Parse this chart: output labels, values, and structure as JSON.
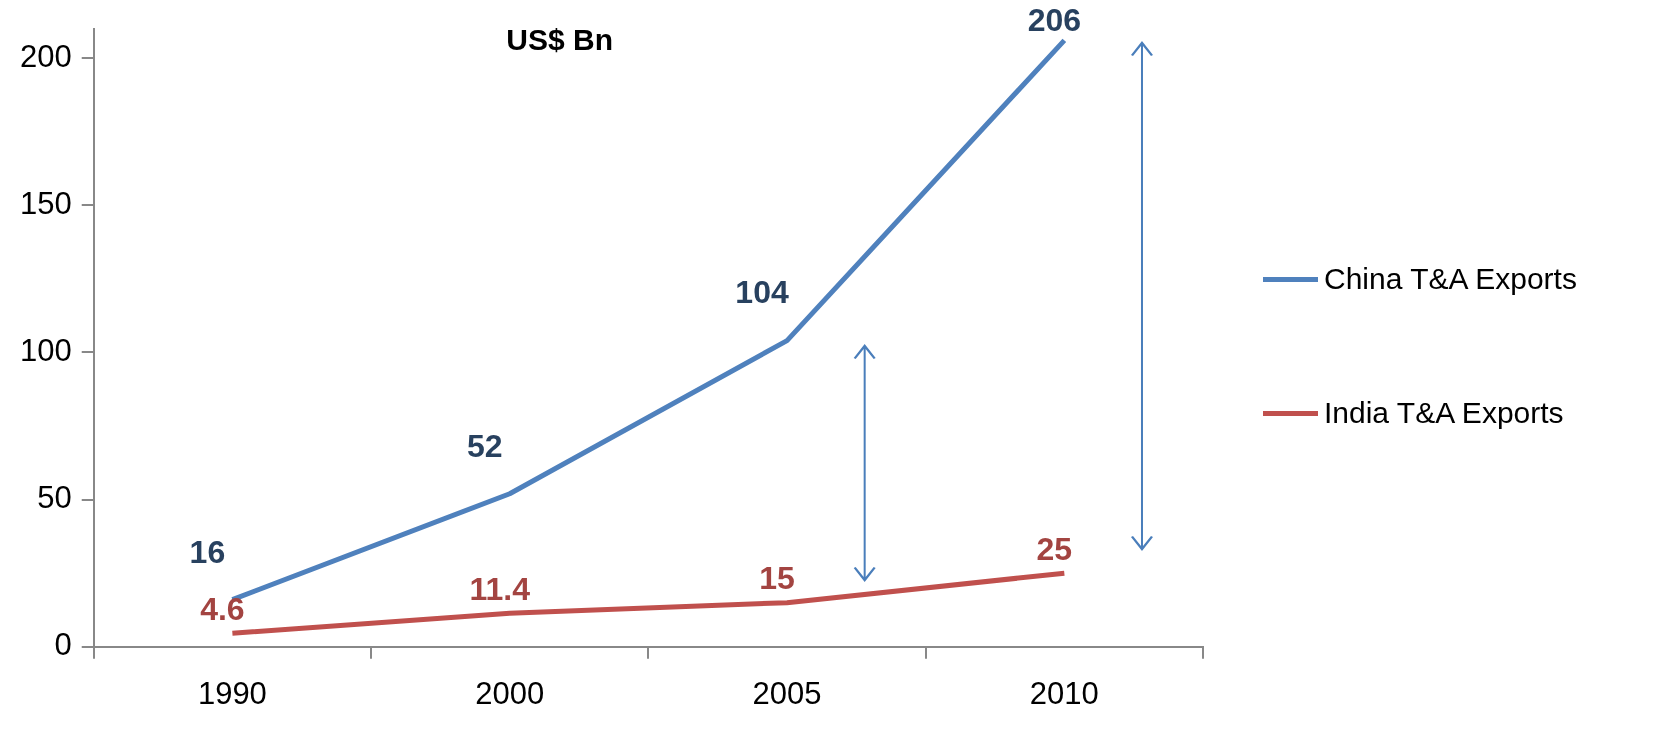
{
  "chart_data": {
    "type": "line",
    "title": "US$ Bn",
    "categories": [
      "1990",
      "2000",
      "2005",
      "2010"
    ],
    "series": [
      {
        "name": "China T&A Exports",
        "color": "#4f81bd",
        "values": [
          16,
          52,
          104,
          206
        ]
      },
      {
        "name": "India T&A Exports",
        "color": "#c0504d",
        "values": [
          4.6,
          11.4,
          15,
          25
        ]
      }
    ],
    "ylim": [
      0,
      210
    ],
    "yticks": [
      0,
      50,
      100,
      150,
      200
    ],
    "grid": false,
    "legend": "right",
    "marker": "none",
    "line_style": "solid",
    "data_labels": true
  }
}
